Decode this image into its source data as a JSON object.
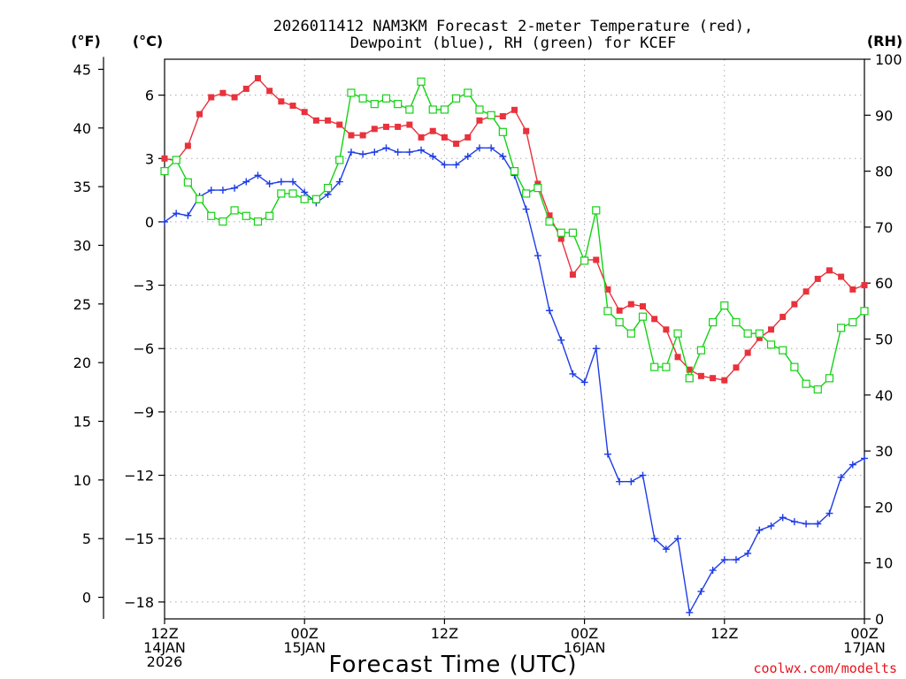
{
  "chart_data": {
    "type": "line",
    "title_line1": "2026011412 NAM3KM Forecast 2-meter Temperature (red),",
    "title_line2": "Dewpoint (blue), RH (green) for KCEF",
    "unit_labels": {
      "fahrenheit": "(°F)",
      "celsius": "(°C)",
      "rh": "(RH)"
    },
    "xlabel": "Forecast Time (UTC)",
    "credit": "coolwx.com/modelts",
    "x_range_hours": [
      0,
      60
    ],
    "x_ticks": [
      {
        "hour": 0,
        "line1": "12Z",
        "line2": "14JAN",
        "line3": "2026"
      },
      {
        "hour": 12,
        "line1": "00Z",
        "line2": "15JAN",
        "line3": ""
      },
      {
        "hour": 24,
        "line1": "12Z",
        "line2": "",
        "line3": ""
      },
      {
        "hour": 36,
        "line1": "00Z",
        "line2": "16JAN",
        "line3": ""
      },
      {
        "hour": 48,
        "line1": "12Z",
        "line2": "",
        "line3": ""
      },
      {
        "hour": 60,
        "line1": "00Z",
        "line2": "17JAN",
        "line3": ""
      }
    ],
    "celsius_axis": {
      "range": [
        -18.8,
        7.7
      ],
      "ticks": [
        6,
        3,
        0,
        -3,
        -6,
        -9,
        -12,
        -15,
        -18
      ],
      "tick_labels": [
        "6",
        "3",
        "0",
        "−3",
        "−6",
        "−9",
        "−12",
        "−15",
        "−18"
      ]
    },
    "fahrenheit_axis": {
      "ticks": [
        45,
        40,
        35,
        30,
        25,
        20,
        15,
        10,
        5,
        0
      ],
      "tick_labels": [
        "45",
        "40",
        "35",
        "30",
        "25",
        "20",
        "15",
        "10",
        "5",
        "0"
      ]
    },
    "rh_axis": {
      "range": [
        0,
        100
      ],
      "ticks": [
        0,
        10,
        20,
        30,
        40,
        50,
        60,
        70,
        80,
        90,
        100
      ],
      "tick_labels": [
        "0",
        "10",
        "20",
        "30",
        "40",
        "50",
        "60",
        "70",
        "80",
        "90",
        "100"
      ]
    },
    "x_hours": [
      0,
      1,
      2,
      3,
      4,
      5,
      6,
      7,
      8,
      9,
      10,
      11,
      12,
      13,
      14,
      15,
      16,
      17,
      18,
      19,
      20,
      21,
      22,
      23,
      24,
      25,
      26,
      27,
      28,
      29,
      30,
      31,
      32,
      33,
      34,
      35,
      36,
      37,
      38,
      39,
      40,
      41,
      42,
      43,
      44,
      45,
      46,
      47,
      48,
      49,
      50,
      51,
      52,
      53,
      54,
      55,
      56,
      57,
      58,
      59,
      60
    ],
    "series": [
      {
        "name": "Temperature",
        "unit": "°C",
        "color": "#e8323c",
        "marker": "filled-square",
        "values": [
          3.0,
          2.9,
          3.6,
          5.1,
          5.9,
          6.1,
          5.9,
          6.3,
          6.8,
          6.2,
          5.7,
          5.5,
          5.2,
          4.8,
          4.8,
          4.6,
          4.1,
          4.1,
          4.4,
          4.5,
          4.5,
          4.6,
          4.0,
          4.3,
          4.0,
          3.7,
          4.0,
          4.8,
          5.0,
          5.0,
          5.3,
          4.3,
          1.8,
          0.3,
          -0.8,
          -2.5,
          -1.8,
          -1.8,
          -3.2,
          -4.2,
          -3.9,
          -4.0,
          -4.6,
          -5.1,
          -6.4,
          -7.0,
          -7.3,
          -7.4,
          -7.5,
          -6.9,
          -6.2,
          -5.5,
          -5.1,
          -4.5,
          -3.9,
          -3.3,
          -2.7,
          -2.3,
          -2.6,
          -3.2,
          -3.0
        ]
      },
      {
        "name": "Dewpoint",
        "unit": "°C",
        "color": "#1e3ce6",
        "marker": "plus",
        "values": [
          0.0,
          0.4,
          0.3,
          1.2,
          1.5,
          1.5,
          1.6,
          1.9,
          2.2,
          1.8,
          1.9,
          1.9,
          1.4,
          0.9,
          1.3,
          1.9,
          3.3,
          3.2,
          3.3,
          3.5,
          3.3,
          3.3,
          3.4,
          3.1,
          2.7,
          2.7,
          3.1,
          3.5,
          3.5,
          3.1,
          2.2,
          0.6,
          -1.6,
          -4.2,
          -5.6,
          -7.2,
          -7.6,
          -6.0,
          -11.0,
          -12.3,
          -12.3,
          -12.0,
          -15.0,
          -15.5,
          -15.0,
          -18.5,
          -17.5,
          -16.5,
          -16.0,
          -16.0,
          -15.7,
          -14.6,
          -14.4,
          -14.0,
          -14.2,
          -14.3,
          -14.3,
          -13.8,
          -12.1,
          -11.5,
          -11.2
        ]
      },
      {
        "name": "RH",
        "unit": "%",
        "color": "#14d214",
        "marker": "open-square",
        "values": [
          80,
          82,
          78,
          75,
          72,
          71,
          73,
          72,
          71,
          72,
          76,
          76,
          75,
          75,
          77,
          82,
          94,
          93,
          92,
          93,
          92,
          91,
          96,
          91,
          91,
          93,
          94,
          91,
          90,
          87,
          80,
          76,
          77,
          71,
          69,
          69,
          64,
          73,
          55,
          53,
          51,
          54,
          45,
          45,
          51,
          43,
          48,
          53,
          56,
          53,
          51,
          51,
          49,
          48,
          45,
          42,
          41,
          43,
          52,
          53,
          55
        ]
      }
    ]
  }
}
